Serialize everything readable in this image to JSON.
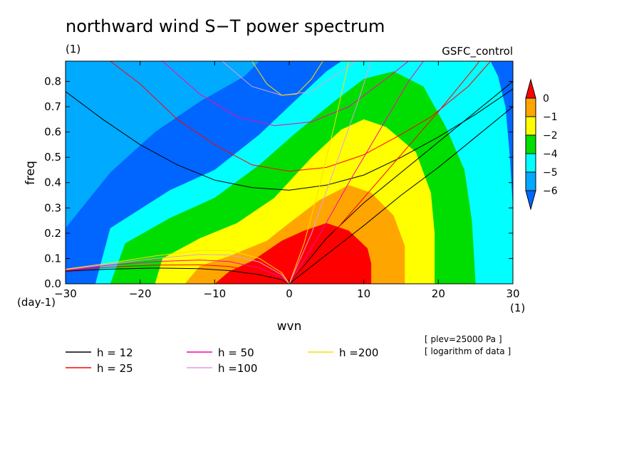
{
  "chart_data": {
    "type": "heatmap",
    "title": "northward wind S−T power spectrum",
    "subtitle_left": "(1)",
    "subtitle_right": "GSFC_control",
    "xlabel": "wvn",
    "ylabel": "freq",
    "x_unit": "(1)",
    "y_unit": "(day-1)",
    "xlim": [
      -30,
      30
    ],
    "ylim": [
      0,
      0.88
    ],
    "xticks": [
      -30,
      -20,
      -10,
      0,
      10,
      20,
      30
    ],
    "xtick_labels": [
      "−30",
      "−20",
      "−10",
      "0",
      "10",
      "20",
      "30"
    ],
    "yticks": [
      0,
      0.1,
      0.2,
      0.3,
      0.4,
      0.5,
      0.6,
      0.7,
      0.8
    ],
    "ytick_labels": [
      "0.0",
      "0.1",
      "0.2",
      "0.3",
      "0.4",
      "0.5",
      "0.6",
      "0.7",
      "0.8"
    ],
    "notes": [
      "[ plev=25000 Pa ]",
      "[ logarithm of data ]"
    ],
    "colorbar": {
      "levels": [
        0,
        -1,
        -2,
        -4,
        -5,
        -6
      ],
      "level_labels": [
        "0",
        "−1",
        "−2",
        "−4",
        "−5",
        "−6"
      ],
      "colors": [
        "#ff0000",
        "#ffa500",
        "#ffff00",
        "#00dd00",
        "#00ffff",
        "#00aaff",
        "#0066ff"
      ]
    },
    "contour_regions": [
      {
        "level": "above -6 (lowest)",
        "color": "#0066ff",
        "outline": [
          [
            -30,
            0.58
          ],
          [
            -25,
            0.68
          ],
          [
            -20,
            0.78
          ],
          [
            -16,
            0.88
          ],
          [
            -30,
            0.88
          ]
        ]
      },
      {
        "level": "-6 to -5",
        "color": "#00aaff",
        "outline": [
          [
            -30,
            0.22
          ],
          [
            -24,
            0.44
          ],
          [
            -18,
            0.6
          ],
          [
            -12,
            0.72
          ],
          [
            -6,
            0.82
          ],
          [
            -4,
            0.88
          ],
          [
            -30,
            0.88
          ]
        ]
      },
      {
        "level": "-5 to -4",
        "color": "#00ffff",
        "outline": [
          [
            -26,
            0
          ],
          [
            -24,
            0.22
          ],
          [
            -16,
            0.37
          ],
          [
            -10,
            0.45
          ],
          [
            -4,
            0.59
          ],
          [
            1,
            0.73
          ],
          [
            5,
            0.84
          ],
          [
            7,
            0.88
          ],
          [
            27,
            0.88
          ],
          [
            28,
            0.82
          ],
          [
            29,
            0.7
          ],
          [
            29.6,
            0.5
          ],
          [
            30,
            0.3
          ],
          [
            30,
            0
          ],
          [
            -26,
            0
          ]
        ]
      },
      {
        "level": "-4 to -2",
        "color": "#00dd00",
        "outline": [
          [
            -24,
            0
          ],
          [
            -22,
            0.16
          ],
          [
            -16,
            0.26
          ],
          [
            -10,
            0.34
          ],
          [
            -4,
            0.47
          ],
          [
            1,
            0.6
          ],
          [
            6,
            0.72
          ],
          [
            10,
            0.81
          ],
          [
            14,
            0.84
          ],
          [
            18,
            0.78
          ],
          [
            21,
            0.62
          ],
          [
            23.5,
            0.45
          ],
          [
            24.5,
            0.25
          ],
          [
            25,
            0
          ],
          [
            -24,
            0
          ]
        ]
      },
      {
        "level": "-2 to -1",
        "color": "#ffff00",
        "outline": [
          [
            -18,
            0
          ],
          [
            -17,
            0.1
          ],
          [
            -12,
            0.18
          ],
          [
            -7,
            0.24
          ],
          [
            -2,
            0.34
          ],
          [
            3,
            0.5
          ],
          [
            7,
            0.61
          ],
          [
            10,
            0.65
          ],
          [
            13,
            0.62
          ],
          [
            17,
            0.52
          ],
          [
            19,
            0.36
          ],
          [
            19.5,
            0.2
          ],
          [
            19.5,
            0
          ],
          [
            -18,
            0
          ]
        ]
      },
      {
        "level": "-1 to 0",
        "color": "#ffa500",
        "outline": [
          [
            -14,
            0
          ],
          [
            -12,
            0.07
          ],
          [
            -8,
            0.11
          ],
          [
            -3,
            0.17
          ],
          [
            0,
            0.24
          ],
          [
            4,
            0.33
          ],
          [
            8,
            0.39
          ],
          [
            11,
            0.36
          ],
          [
            14,
            0.27
          ],
          [
            15.5,
            0.15
          ],
          [
            15.5,
            0
          ],
          [
            -14,
            0
          ]
        ]
      },
      {
        "level": "above 0",
        "color": "#ff0000",
        "outline": [
          [
            -10,
            0
          ],
          [
            -8,
            0.05
          ],
          [
            -5,
            0.09
          ],
          [
            -1,
            0.17
          ],
          [
            2,
            0.21
          ],
          [
            5,
            0.24
          ],
          [
            8,
            0.21
          ],
          [
            10.5,
            0.14
          ],
          [
            11,
            0.08
          ],
          [
            11,
            0
          ],
          [
            -10,
            0
          ]
        ]
      }
    ],
    "dispersion_curves": [
      {
        "label": "h = 12",
        "color": "#000000",
        "groups": [
          [
            [
              -30,
              0.76
            ],
            [
              -25,
              0.65
            ],
            [
              -20,
              0.55
            ],
            [
              -15,
              0.47
            ],
            [
              -10,
              0.41
            ],
            [
              -5,
              0.38
            ],
            [
              0,
              0.37
            ],
            [
              5,
              0.39
            ],
            [
              10,
              0.43
            ],
            [
              15,
              0.5
            ],
            [
              20,
              0.58
            ],
            [
              25,
              0.67
            ],
            [
              30,
              0.77
            ]
          ],
          [
            [
              -30,
              0.05
            ],
            [
              -24,
              0.058
            ],
            [
              -18,
              0.062
            ],
            [
              -12,
              0.06
            ],
            [
              -8,
              0.052
            ],
            [
              -4,
              0.036
            ],
            [
              -1,
              0.016
            ],
            [
              0,
              0
            ]
          ],
          [
            [
              0,
              0
            ],
            [
              5,
              0.115
            ],
            [
              10,
              0.23
            ],
            [
              15,
              0.35
            ],
            [
              20,
              0.46
            ],
            [
              25,
              0.58
            ],
            [
              30,
              0.7
            ]
          ],
          [
            [
              0,
              0
            ],
            [
              5,
              0.18
            ],
            [
              10,
              0.32
            ],
            [
              15,
              0.44
            ],
            [
              20,
              0.56
            ],
            [
              25,
              0.68
            ],
            [
              30,
              0.8
            ]
          ]
        ]
      },
      {
        "label": "h = 25",
        "color": "#ff0000",
        "groups": [
          [
            [
              -24,
              0.88
            ],
            [
              -20,
              0.79
            ],
            [
              -15,
              0.65
            ],
            [
              -10,
              0.55
            ],
            [
              -5,
              0.47
            ],
            [
              0,
              0.445
            ],
            [
              5,
              0.46
            ],
            [
              10,
              0.51
            ],
            [
              15,
              0.59
            ],
            [
              19,
              0.66
            ],
            [
              24,
              0.78
            ],
            [
              27,
              0.88
            ]
          ],
          [
            [
              -30,
              0.052
            ],
            [
              -24,
              0.066
            ],
            [
              -18,
              0.074
            ],
            [
              -12,
              0.075
            ],
            [
              -8,
              0.068
            ],
            [
              -4,
              0.047
            ],
            [
              -1,
              0.02
            ],
            [
              0,
              0
            ]
          ],
          [
            [
              0,
              0
            ],
            [
              5,
              0.17
            ],
            [
              10,
              0.34
            ],
            [
              15,
              0.51
            ],
            [
              20,
              0.68
            ],
            [
              25,
              0.86
            ],
            [
              25.5,
              0.88
            ]
          ]
        ]
      },
      {
        "label": "h = 50",
        "color": "#ff00aa",
        "groups": [
          [
            [
              -17,
              0.88
            ],
            [
              -12,
              0.75
            ],
            [
              -7,
              0.66
            ],
            [
              -2,
              0.625
            ],
            [
              3,
              0.64
            ],
            [
              8,
              0.7
            ],
            [
              13,
              0.81
            ],
            [
              16,
              0.88
            ]
          ],
          [
            [
              -30,
              0.054
            ],
            [
              -24,
              0.074
            ],
            [
              -18,
              0.088
            ],
            [
              -12,
              0.094
            ],
            [
              -8,
              0.088
            ],
            [
              -4,
              0.062
            ],
            [
              -1,
              0.026
            ],
            [
              0,
              0
            ]
          ],
          [
            [
              0,
              0
            ],
            [
              4,
              0.19
            ],
            [
              8,
              0.4
            ],
            [
              12,
              0.6
            ],
            [
              16,
              0.8
            ],
            [
              18,
              0.88
            ]
          ]
        ]
      },
      {
        "label": "h =100",
        "color": "#dda0dd",
        "groups": [
          [
            [
              -9,
              0.88
            ],
            [
              -5,
              0.78
            ],
            [
              -1,
              0.745
            ],
            [
              3,
              0.76
            ],
            [
              7,
              0.84
            ],
            [
              9,
              0.88
            ]
          ],
          [
            [
              -30,
              0.056
            ],
            [
              -24,
              0.078
            ],
            [
              -18,
              0.1
            ],
            [
              -12,
              0.116
            ],
            [
              -8,
              0.114
            ],
            [
              -4,
              0.086
            ],
            [
              -1,
              0.036
            ],
            [
              0,
              0
            ]
          ],
          [
            [
              0,
              0
            ],
            [
              3,
              0.2
            ],
            [
              6,
              0.45
            ],
            [
              9,
              0.7
            ],
            [
              11,
              0.88
            ]
          ]
        ]
      },
      {
        "label": "h =200",
        "color": "#ffdd00",
        "groups": [
          [
            [
              -5,
              0.88
            ],
            [
              -3,
              0.79
            ],
            [
              -1,
              0.745
            ],
            [
              1,
              0.75
            ],
            [
              3,
              0.81
            ],
            [
              4.5,
              0.88
            ]
          ],
          [
            [
              -30,
              0.058
            ],
            [
              -24,
              0.082
            ],
            [
              -18,
              0.11
            ],
            [
              -12,
              0.132
            ],
            [
              -8,
              0.132
            ],
            [
              -4,
              0.1
            ],
            [
              -1,
              0.044
            ],
            [
              0,
              0
            ]
          ],
          [
            [
              0,
              0
            ],
            [
              2,
              0.16
            ],
            [
              4,
              0.38
            ],
            [
              6,
              0.62
            ],
            [
              8,
              0.88
            ]
          ]
        ]
      }
    ],
    "legend": [
      {
        "label": "h = 12",
        "color": "#000000"
      },
      {
        "label": "h = 25",
        "color": "#ff0000"
      },
      {
        "label": "h = 50",
        "color": "#ff00aa"
      },
      {
        "label": "h =100",
        "color": "#dda0dd"
      },
      {
        "label": "h =200",
        "color": "#ffdd00"
      }
    ],
    "legend_placement": "bottom-left",
    "grid": false
  }
}
